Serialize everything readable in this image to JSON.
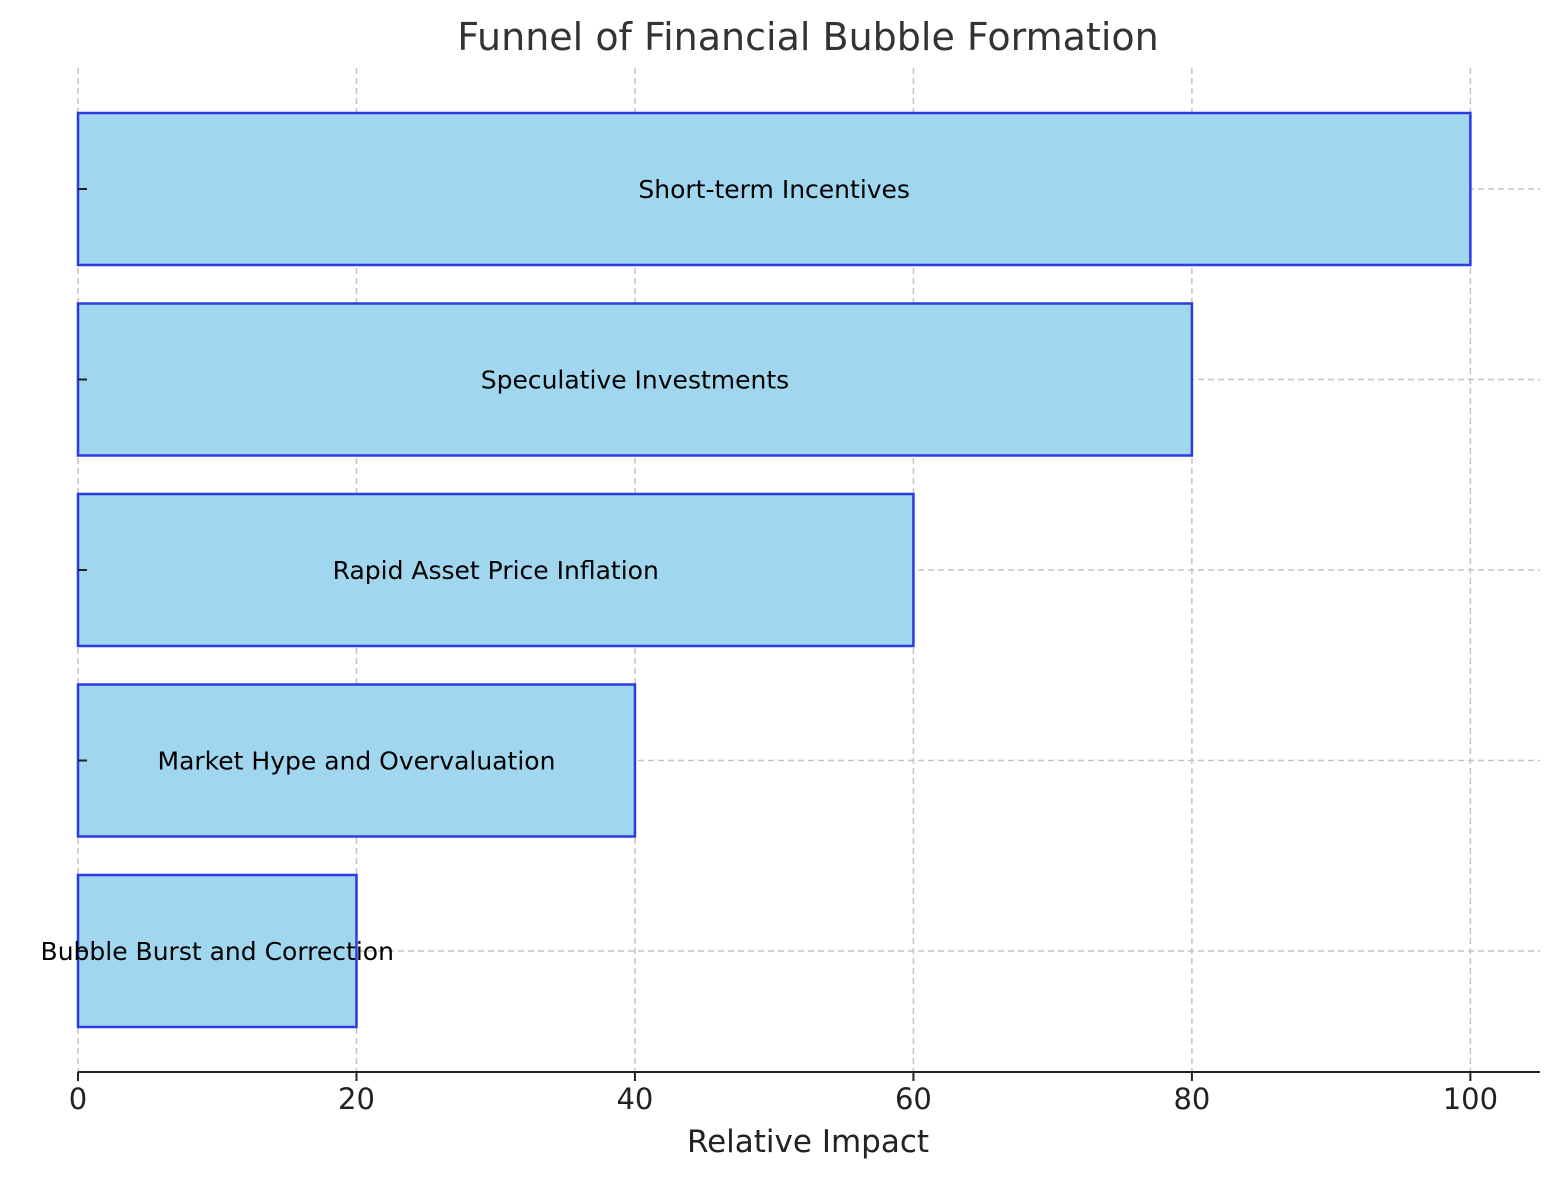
{
  "chart_data": {
    "type": "bar",
    "orientation": "horizontal",
    "title": "Funnel of Financial Bubble Formation",
    "xlabel": "Relative Impact",
    "ylabel": "",
    "categories": [
      "Short-term Incentives",
      "Speculative Investments",
      "Rapid Asset Price Inflation",
      "Market Hype and Overvaluation",
      "Bubble Burst and Correction"
    ],
    "values": [
      100,
      80,
      60,
      40,
      20
    ],
    "xlim": [
      0,
      105
    ],
    "xticks": [
      "0",
      "20",
      "40",
      "60",
      "80",
      "100"
    ],
    "grid": true,
    "legend": "none",
    "colors": {
      "bar_fill": "#a0d6ee",
      "bar_edge": "#2b3be0",
      "axis": "#222222"
    }
  }
}
